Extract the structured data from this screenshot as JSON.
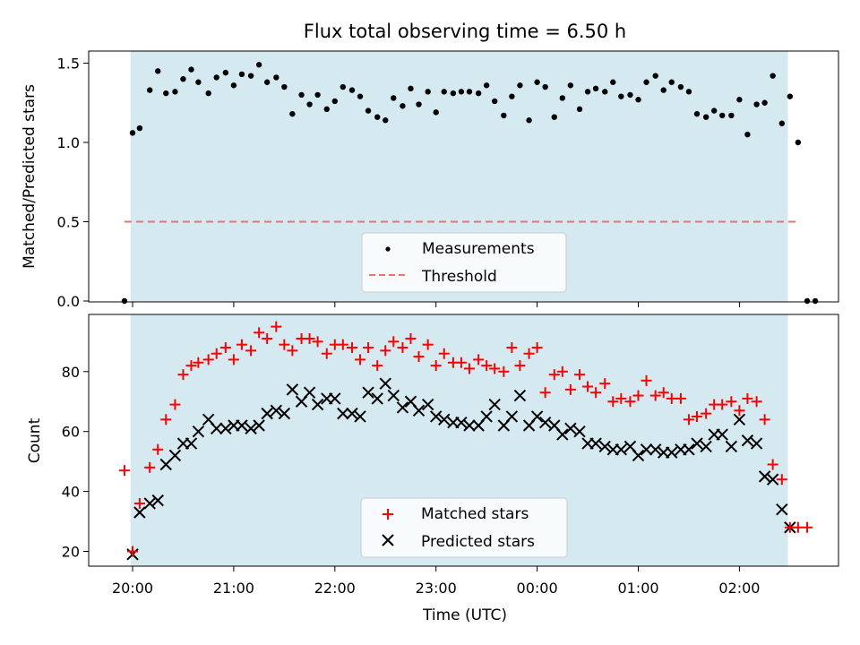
{
  "chart_data": [
    {
      "type": "scatter",
      "title": "Flux total observing time = 6.50 h",
      "ylabel": "Matched/Predicted stars",
      "xlabel": "",
      "ylim": [
        0,
        1.55
      ],
      "yticks": [
        "0.0",
        "0.5",
        "1.0",
        "1.5"
      ],
      "yticks_values": [
        0,
        0.5,
        1.0,
        1.5
      ],
      "x_unit": "hours since 20:00 UTC",
      "shaded_span": [
        -0.02,
        6.48
      ],
      "threshold": {
        "name": "Threshold",
        "value": 0.5,
        "x": [
          -0.08,
          6.6
        ],
        "color": "#f07070"
      },
      "series": [
        {
          "name": "Measurements",
          "color": "#000000",
          "points": [
            [
              -0.08,
              0.0
            ],
            [
              0.0,
              1.06
            ],
            [
              0.07,
              1.09
            ],
            [
              0.17,
              1.33
            ],
            [
              0.25,
              1.45
            ],
            [
              0.33,
              1.31
            ],
            [
              0.42,
              1.32
            ],
            [
              0.5,
              1.4
            ],
            [
              0.58,
              1.46
            ],
            [
              0.65,
              1.38
            ],
            [
              0.75,
              1.31
            ],
            [
              0.83,
              1.41
            ],
            [
              0.92,
              1.44
            ],
            [
              1.0,
              1.36
            ],
            [
              1.08,
              1.43
            ],
            [
              1.17,
              1.42
            ],
            [
              1.25,
              1.49
            ],
            [
              1.33,
              1.38
            ],
            [
              1.42,
              1.41
            ],
            [
              1.5,
              1.35
            ],
            [
              1.58,
              1.18
            ],
            [
              1.67,
              1.3
            ],
            [
              1.75,
              1.24
            ],
            [
              1.83,
              1.3
            ],
            [
              1.92,
              1.21
            ],
            [
              2.0,
              1.26
            ],
            [
              2.08,
              1.35
            ],
            [
              2.17,
              1.33
            ],
            [
              2.25,
              1.29
            ],
            [
              2.33,
              1.2
            ],
            [
              2.42,
              1.16
            ],
            [
              2.5,
              1.14
            ],
            [
              2.58,
              1.28
            ],
            [
              2.67,
              1.23
            ],
            [
              2.75,
              1.34
            ],
            [
              2.83,
              1.24
            ],
            [
              2.92,
              1.32
            ],
            [
              3.0,
              1.19
            ],
            [
              3.08,
              1.32
            ],
            [
              3.17,
              1.31
            ],
            [
              3.25,
              1.32
            ],
            [
              3.33,
              1.32
            ],
            [
              3.42,
              1.31
            ],
            [
              3.5,
              1.36
            ],
            [
              3.58,
              1.26
            ],
            [
              3.67,
              1.17
            ],
            [
              3.75,
              1.29
            ],
            [
              3.83,
              1.36
            ],
            [
              3.92,
              1.14
            ],
            [
              4.0,
              1.38
            ],
            [
              4.08,
              1.35
            ],
            [
              4.17,
              1.16
            ],
            [
              4.25,
              1.28
            ],
            [
              4.33,
              1.36
            ],
            [
              4.42,
              1.21
            ],
            [
              4.5,
              1.32
            ],
            [
              4.58,
              1.34
            ],
            [
              4.67,
              1.32
            ],
            [
              4.75,
              1.38
            ],
            [
              4.83,
              1.29
            ],
            [
              4.92,
              1.3
            ],
            [
              5.0,
              1.27
            ],
            [
              5.08,
              1.38
            ],
            [
              5.17,
              1.42
            ],
            [
              5.25,
              1.33
            ],
            [
              5.33,
              1.38
            ],
            [
              5.42,
              1.35
            ],
            [
              5.5,
              1.32
            ],
            [
              5.58,
              1.18
            ],
            [
              5.67,
              1.16
            ],
            [
              5.75,
              1.2
            ],
            [
              5.83,
              1.17
            ],
            [
              5.92,
              1.17
            ],
            [
              6.0,
              1.27
            ],
            [
              6.08,
              1.05
            ],
            [
              6.17,
              1.24
            ],
            [
              6.25,
              1.25
            ],
            [
              6.33,
              1.42
            ],
            [
              6.42,
              1.12
            ],
            [
              6.5,
              1.29
            ],
            [
              6.58,
              1.0
            ],
            [
              6.67,
              0.0
            ],
            [
              6.75,
              0.0
            ]
          ]
        }
      ],
      "legend": {
        "position": "bottom-center",
        "entries": [
          "Measurements",
          "Threshold"
        ]
      }
    },
    {
      "type": "scatter",
      "title": "",
      "ylabel": "Count",
      "xlabel": "Time (UTC)",
      "ylim": [
        15,
        97
      ],
      "yticks": [
        "20",
        "40",
        "60",
        "80"
      ],
      "yticks_values": [
        20,
        40,
        60,
        80
      ],
      "xlim": [
        -0.43,
        7.0
      ],
      "xticks": [
        "20:00",
        "21:00",
        "22:00",
        "23:00",
        "00:00",
        "01:00",
        "02:00"
      ],
      "xticks_values": [
        0,
        1,
        2,
        3,
        4,
        5,
        6
      ],
      "x_unit": "hours since 20:00 UTC",
      "shaded_span": [
        -0.02,
        6.48
      ],
      "series": [
        {
          "name": "Matched stars",
          "color": "#ff0000",
          "marker": "+",
          "points": [
            [
              -0.08,
              47
            ],
            [
              0.0,
              20
            ],
            [
              0.07,
              36
            ],
            [
              0.17,
              48
            ],
            [
              0.25,
              54
            ],
            [
              0.33,
              64
            ],
            [
              0.42,
              69
            ],
            [
              0.5,
              79
            ],
            [
              0.58,
              82
            ],
            [
              0.65,
              83
            ],
            [
              0.75,
              84
            ],
            [
              0.83,
              86
            ],
            [
              0.92,
              88
            ],
            [
              1.0,
              84
            ],
            [
              1.08,
              89
            ],
            [
              1.17,
              87
            ],
            [
              1.25,
              93
            ],
            [
              1.33,
              91
            ],
            [
              1.42,
              95
            ],
            [
              1.5,
              89
            ],
            [
              1.58,
              87
            ],
            [
              1.67,
              91
            ],
            [
              1.75,
              91
            ],
            [
              1.83,
              90
            ],
            [
              1.92,
              86
            ],
            [
              2.0,
              89
            ],
            [
              2.08,
              89
            ],
            [
              2.17,
              88
            ],
            [
              2.25,
              84
            ],
            [
              2.33,
              88
            ],
            [
              2.42,
              82
            ],
            [
              2.5,
              87
            ],
            [
              2.58,
              90
            ],
            [
              2.67,
              88
            ],
            [
              2.75,
              91
            ],
            [
              2.83,
              85
            ],
            [
              2.92,
              89
            ],
            [
              3.0,
              82
            ],
            [
              3.08,
              86
            ],
            [
              3.17,
              83
            ],
            [
              3.25,
              83
            ],
            [
              3.33,
              81
            ],
            [
              3.42,
              84
            ],
            [
              3.5,
              82
            ],
            [
              3.58,
              81
            ],
            [
              3.67,
              80
            ],
            [
              3.75,
              88
            ],
            [
              3.83,
              82
            ],
            [
              3.92,
              86
            ],
            [
              4.0,
              88
            ],
            [
              4.08,
              73
            ],
            [
              4.17,
              79
            ],
            [
              4.25,
              80
            ],
            [
              4.33,
              74
            ],
            [
              4.42,
              79
            ],
            [
              4.5,
              75
            ],
            [
              4.58,
              73
            ],
            [
              4.67,
              76
            ],
            [
              4.75,
              70
            ],
            [
              4.83,
              71
            ],
            [
              4.92,
              70
            ],
            [
              5.0,
              72
            ],
            [
              5.08,
              77
            ],
            [
              5.17,
              72
            ],
            [
              5.25,
              73
            ],
            [
              5.33,
              71
            ],
            [
              5.42,
              71
            ],
            [
              5.5,
              64
            ],
            [
              5.58,
              65
            ],
            [
              5.67,
              66
            ],
            [
              5.75,
              69
            ],
            [
              5.83,
              69
            ],
            [
              5.92,
              70
            ],
            [
              6.0,
              67
            ],
            [
              6.08,
              71
            ],
            [
              6.17,
              70
            ],
            [
              6.25,
              64
            ],
            [
              6.33,
              49
            ],
            [
              6.42,
              44
            ],
            [
              6.5,
              28
            ],
            [
              6.58,
              28
            ],
            [
              6.67,
              28
            ]
          ]
        },
        {
          "name": "Predicted stars",
          "color": "#000000",
          "marker": "x",
          "points": [
            [
              0.0,
              19
            ],
            [
              0.07,
              33
            ],
            [
              0.17,
              36
            ],
            [
              0.25,
              37
            ],
            [
              0.33,
              49
            ],
            [
              0.42,
              52
            ],
            [
              0.5,
              56
            ],
            [
              0.58,
              56
            ],
            [
              0.65,
              60
            ],
            [
              0.75,
              64
            ],
            [
              0.83,
              61
            ],
            [
              0.92,
              61
            ],
            [
              1.0,
              62
            ],
            [
              1.08,
              62
            ],
            [
              1.17,
              61
            ],
            [
              1.25,
              62
            ],
            [
              1.33,
              66
            ],
            [
              1.42,
              67
            ],
            [
              1.5,
              66
            ],
            [
              1.58,
              74
            ],
            [
              1.67,
              70
            ],
            [
              1.75,
              73
            ],
            [
              1.83,
              69
            ],
            [
              1.92,
              71
            ],
            [
              2.0,
              71
            ],
            [
              2.08,
              66
            ],
            [
              2.17,
              66
            ],
            [
              2.25,
              65
            ],
            [
              2.33,
              73
            ],
            [
              2.42,
              71
            ],
            [
              2.5,
              76
            ],
            [
              2.58,
              72
            ],
            [
              2.67,
              68
            ],
            [
              2.75,
              70
            ],
            [
              2.83,
              67
            ],
            [
              2.92,
              69
            ],
            [
              3.0,
              65
            ],
            [
              3.08,
              64
            ],
            [
              3.17,
              63
            ],
            [
              3.25,
              63
            ],
            [
              3.33,
              62
            ],
            [
              3.42,
              62
            ],
            [
              3.5,
              65
            ],
            [
              3.58,
              69
            ],
            [
              3.67,
              62
            ],
            [
              3.75,
              65
            ],
            [
              3.83,
              72
            ],
            [
              3.92,
              62
            ],
            [
              4.0,
              65
            ],
            [
              4.08,
              63
            ],
            [
              4.17,
              62
            ],
            [
              4.25,
              59
            ],
            [
              4.33,
              61
            ],
            [
              4.42,
              60
            ],
            [
              4.5,
              56
            ],
            [
              4.58,
              56
            ],
            [
              4.67,
              55
            ],
            [
              4.75,
              54
            ],
            [
              4.83,
              54
            ],
            [
              4.92,
              55
            ],
            [
              5.0,
              52
            ],
            [
              5.08,
              54
            ],
            [
              5.17,
              54
            ],
            [
              5.25,
              53
            ],
            [
              5.33,
              53
            ],
            [
              5.42,
              54
            ],
            [
              5.5,
              54
            ],
            [
              5.58,
              56
            ],
            [
              5.67,
              55
            ],
            [
              5.75,
              59
            ],
            [
              5.83,
              59
            ],
            [
              5.92,
              55
            ],
            [
              6.0,
              64
            ],
            [
              6.08,
              57
            ],
            [
              6.17,
              56
            ],
            [
              6.25,
              45
            ],
            [
              6.33,
              44
            ],
            [
              6.42,
              34
            ],
            [
              6.5,
              28
            ]
          ]
        }
      ],
      "legend": {
        "position": "bottom-center",
        "entries": [
          "Matched stars",
          "Predicted stars"
        ]
      }
    }
  ],
  "colors": {
    "shade": "#d4eaf0",
    "shade_edge": "#b8dbe6",
    "legend_bg": "#ffffff"
  }
}
